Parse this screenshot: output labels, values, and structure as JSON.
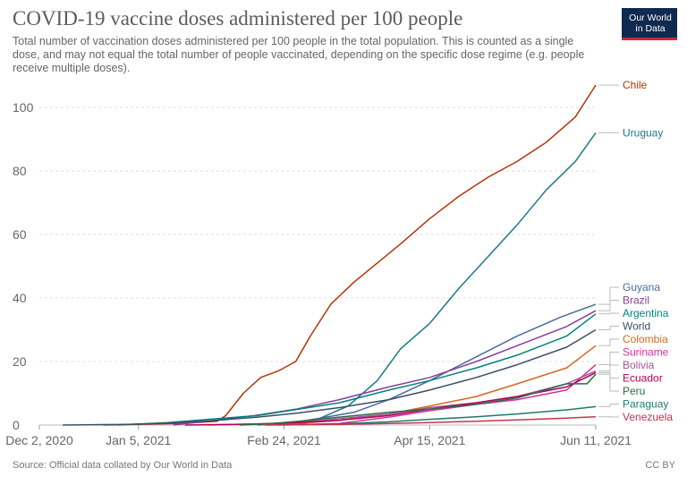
{
  "header": {
    "title": "COVID-19 vaccine doses administered per 100 people",
    "subtitle": "Total number of vaccination doses administered per 100 people in the total population. This is counted as a single dose, and may not equal the total number of people vaccinated, depending on the specific dose regime (e.g. people receive multiple doses)."
  },
  "logo": {
    "line1": "Our World",
    "line2": "in Data"
  },
  "footer": {
    "source": "Source: Official data collated by Our World in Data",
    "license": "CC BY"
  },
  "chart_data": {
    "type": "line",
    "ylim": [
      0,
      100
    ],
    "yticks": [
      0,
      20,
      40,
      60,
      80,
      100
    ],
    "xticks": [
      {
        "date": "2020-12-02",
        "label": "Dec 2, 2020"
      },
      {
        "date": "2021-01-05",
        "label": "Jan 5, 2021"
      },
      {
        "date": "2021-02-24",
        "label": "Feb 24, 2021"
      },
      {
        "date": "2021-04-15",
        "label": "Apr 15, 2021"
      },
      {
        "date": "2021-06-11",
        "label": "Jun 11, 2021"
      }
    ],
    "grid": "horizontal-dashed",
    "legend": "right, end-of-line labels",
    "series": [
      {
        "name": "Chile",
        "color": "#b13507",
        "points": [
          [
            "2020-12-24",
            0
          ],
          [
            "2021-01-20",
            0.5
          ],
          [
            "2021-02-01",
            1.2
          ],
          [
            "2021-02-04",
            3
          ],
          [
            "2021-02-10",
            10
          ],
          [
            "2021-02-16",
            15
          ],
          [
            "2021-02-22",
            17
          ],
          [
            "2021-02-28",
            20
          ],
          [
            "2021-03-05",
            28
          ],
          [
            "2021-03-12",
            38
          ],
          [
            "2021-03-20",
            45
          ],
          [
            "2021-03-28",
            51
          ],
          [
            "2021-04-05",
            57
          ],
          [
            "2021-04-15",
            65
          ],
          [
            "2021-04-25",
            72
          ],
          [
            "2021-05-05",
            78
          ],
          [
            "2021-05-15",
            83
          ],
          [
            "2021-05-25",
            89
          ],
          [
            "2021-06-04",
            97
          ],
          [
            "2021-06-11",
            107
          ]
        ]
      },
      {
        "name": "Uruguay",
        "color": "#18798a",
        "points": [
          [
            "2021-03-01",
            0
          ],
          [
            "2021-03-08",
            2
          ],
          [
            "2021-03-18",
            6
          ],
          [
            "2021-03-28",
            14
          ],
          [
            "2021-04-05",
            24
          ],
          [
            "2021-04-15",
            32
          ],
          [
            "2021-04-25",
            43
          ],
          [
            "2021-05-05",
            53
          ],
          [
            "2021-05-15",
            63
          ],
          [
            "2021-05-25",
            74
          ],
          [
            "2021-06-04",
            83
          ],
          [
            "2021-06-11",
            92
          ]
        ]
      },
      {
        "name": "Guyana",
        "color": "#4c6a9c",
        "points": [
          [
            "2021-02-15",
            0
          ],
          [
            "2021-03-01",
            1
          ],
          [
            "2021-03-20",
            4
          ],
          [
            "2021-04-01",
            8
          ],
          [
            "2021-04-15",
            14
          ],
          [
            "2021-04-30",
            21
          ],
          [
            "2021-05-15",
            28
          ],
          [
            "2021-05-30",
            34
          ],
          [
            "2021-06-11",
            38
          ]
        ]
      },
      {
        "name": "Brazil",
        "color": "#883f98",
        "points": [
          [
            "2021-01-17",
            0
          ],
          [
            "2021-01-31",
            1.5
          ],
          [
            "2021-02-14",
            3
          ],
          [
            "2021-02-28",
            5
          ],
          [
            "2021-03-15",
            8
          ],
          [
            "2021-04-01",
            12
          ],
          [
            "2021-04-15",
            15
          ],
          [
            "2021-05-01",
            20
          ],
          [
            "2021-05-15",
            25
          ],
          [
            "2021-06-01",
            31
          ],
          [
            "2021-06-11",
            36
          ]
        ]
      },
      {
        "name": "Argentina",
        "color": "#00847e",
        "points": [
          [
            "2020-12-29",
            0
          ],
          [
            "2021-01-15",
            0.8
          ],
          [
            "2021-02-01",
            2
          ],
          [
            "2021-02-15",
            3
          ],
          [
            "2021-03-01",
            5
          ],
          [
            "2021-03-15",
            7
          ],
          [
            "2021-04-01",
            11
          ],
          [
            "2021-04-15",
            14
          ],
          [
            "2021-05-01",
            18
          ],
          [
            "2021-05-15",
            22
          ],
          [
            "2021-06-01",
            28
          ],
          [
            "2021-06-11",
            35
          ]
        ]
      },
      {
        "name": "World",
        "color": "#3c4e66",
        "points": [
          [
            "2020-12-10",
            0
          ],
          [
            "2021-01-01",
            0.2
          ],
          [
            "2021-01-15",
            0.6
          ],
          [
            "2021-02-01",
            1.5
          ],
          [
            "2021-02-15",
            2.5
          ],
          [
            "2021-03-01",
            3.8
          ],
          [
            "2021-03-15",
            5.5
          ],
          [
            "2021-04-01",
            8
          ],
          [
            "2021-04-15",
            11
          ],
          [
            "2021-05-01",
            15
          ],
          [
            "2021-05-15",
            19
          ],
          [
            "2021-06-01",
            24.5
          ],
          [
            "2021-06-11",
            30
          ]
        ]
      },
      {
        "name": "Colombia",
        "color": "#d2691e",
        "points": [
          [
            "2021-02-17",
            0
          ],
          [
            "2021-03-01",
            0.5
          ],
          [
            "2021-03-15",
            1.5
          ],
          [
            "2021-04-01",
            3.5
          ],
          [
            "2021-04-15",
            6
          ],
          [
            "2021-05-01",
            9
          ],
          [
            "2021-05-15",
            13
          ],
          [
            "2021-06-01",
            18
          ],
          [
            "2021-06-11",
            25
          ]
        ]
      },
      {
        "name": "Suriname",
        "color": "#d52fa0",
        "points": [
          [
            "2021-02-25",
            0
          ],
          [
            "2021-03-15",
            0.5
          ],
          [
            "2021-04-01",
            2.5
          ],
          [
            "2021-04-15",
            4.5
          ],
          [
            "2021-05-01",
            6.5
          ],
          [
            "2021-05-15",
            8
          ],
          [
            "2021-06-01",
            11
          ],
          [
            "2021-06-11",
            19
          ]
        ]
      },
      {
        "name": "Bolivia",
        "color": "#a2559c",
        "points": [
          [
            "2021-01-29",
            0
          ],
          [
            "2021-02-15",
            0.4
          ],
          [
            "2021-03-01",
            0.8
          ],
          [
            "2021-03-15",
            2
          ],
          [
            "2021-04-01",
            3.5
          ],
          [
            "2021-04-15",
            5.5
          ],
          [
            "2021-05-01",
            7
          ],
          [
            "2021-05-15",
            9
          ],
          [
            "2021-06-01",
            13
          ],
          [
            "2021-06-11",
            17
          ]
        ]
      },
      {
        "name": "Ecuador",
        "color": "#b40058",
        "points": [
          [
            "2021-01-21",
            0
          ],
          [
            "2021-02-15",
            0.3
          ],
          [
            "2021-03-01",
            0.8
          ],
          [
            "2021-03-15",
            1.5
          ],
          [
            "2021-04-01",
            3
          ],
          [
            "2021-04-15",
            5
          ],
          [
            "2021-05-01",
            7
          ],
          [
            "2021-05-15",
            9
          ],
          [
            "2021-06-01",
            12
          ],
          [
            "2021-06-11",
            16.5
          ]
        ]
      },
      {
        "name": "Peru",
        "color": "#286d44",
        "points": [
          [
            "2021-02-09",
            0
          ],
          [
            "2021-02-20",
            0.5
          ],
          [
            "2021-03-01",
            1.2
          ],
          [
            "2021-03-15",
            2.5
          ],
          [
            "2021-04-01",
            4
          ],
          [
            "2021-04-15",
            5
          ],
          [
            "2021-05-01",
            6.5
          ],
          [
            "2021-05-15",
            8.5
          ],
          [
            "2021-06-01",
            13
          ],
          [
            "2021-06-08",
            13
          ],
          [
            "2021-06-11",
            16
          ]
        ]
      },
      {
        "name": "Paraguay",
        "color": "#1d7b6a",
        "points": [
          [
            "2021-02-22",
            0
          ],
          [
            "2021-03-15",
            0.4
          ],
          [
            "2021-04-01",
            1
          ],
          [
            "2021-04-15",
            1.8
          ],
          [
            "2021-05-01",
            2.6
          ],
          [
            "2021-05-15",
            3.5
          ],
          [
            "2021-06-01",
            4.8
          ],
          [
            "2021-06-11",
            5.8
          ]
        ]
      },
      {
        "name": "Venezuela",
        "color": "#c4344f",
        "points": [
          [
            "2021-02-18",
            0
          ],
          [
            "2021-03-15",
            0.2
          ],
          [
            "2021-04-01",
            0.5
          ],
          [
            "2021-04-15",
            0.8
          ],
          [
            "2021-05-01",
            1.2
          ],
          [
            "2021-05-15",
            1.6
          ],
          [
            "2021-06-01",
            2.2
          ],
          [
            "2021-06-11",
            2.6
          ]
        ]
      }
    ]
  }
}
